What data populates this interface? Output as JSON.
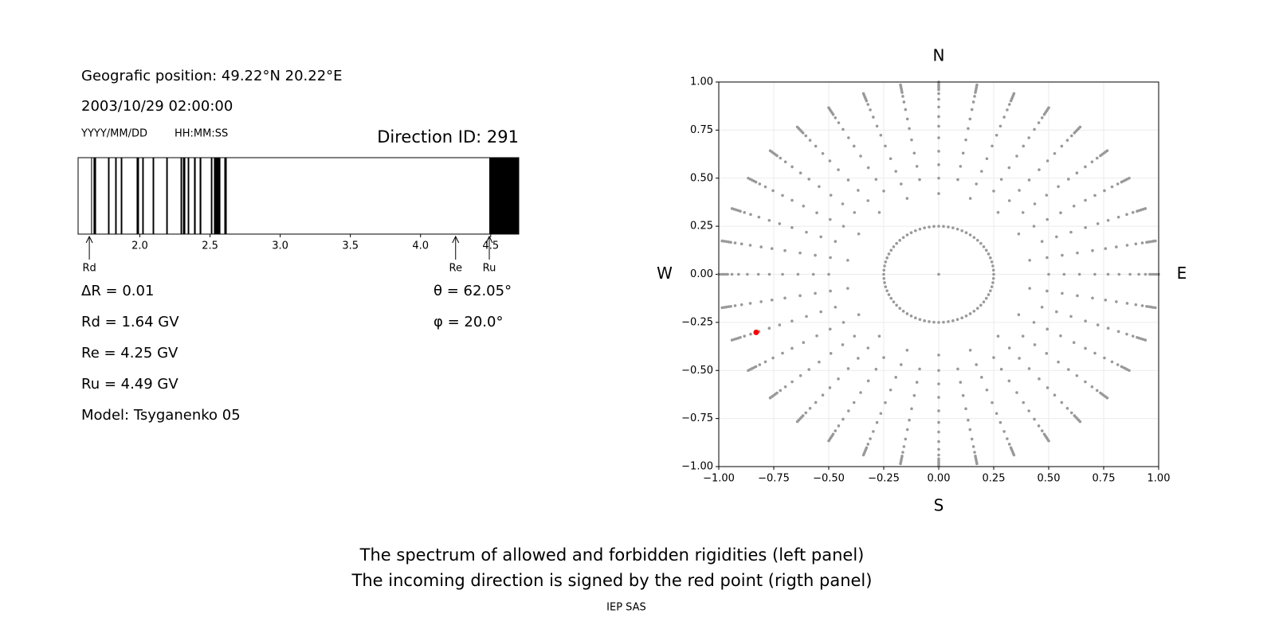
{
  "header": {
    "position": "Geografic position: 49.22°N 20.22°E",
    "datetime": "2003/10/29 02:00:00",
    "date_format": "YYYY/MM/DD",
    "time_format": "HH:MM:SS",
    "direction": "Direction ID: 291"
  },
  "info_left": [
    "ΔR = 0.01",
    "Rd = 1.64 GV",
    "Re = 4.25 GV",
    "Ru = 4.49 GV",
    "Model: Tsyganenko 05"
  ],
  "info_right": [
    "θ = 62.05°",
    "φ = 20.0°"
  ],
  "chart_data": [
    {
      "type": "spectrum",
      "xlim": [
        1.56,
        4.7
      ],
      "xticks": [
        {
          "value": 2,
          "label": "2.0"
        },
        {
          "value": 2.5,
          "label": "2.5"
        },
        {
          "value": 3,
          "label": "3.0"
        },
        {
          "value": 3.5,
          "label": "3.5"
        },
        {
          "value": 4,
          "label": "4.0"
        },
        {
          "value": 4.5,
          "label": "4.5"
        }
      ],
      "color": "#000000",
      "bands": [
        [
          1.653,
          1.659
        ],
        [
          1.67,
          1.688
        ],
        [
          1.773,
          1.784
        ],
        [
          1.824,
          1.835
        ],
        [
          1.864,
          1.875
        ],
        [
          1.977,
          1.994
        ],
        [
          2.017,
          2.028
        ],
        [
          2.091,
          2.102
        ],
        [
          2.188,
          2.199
        ],
        [
          2.29,
          2.301
        ],
        [
          2.307,
          2.324
        ],
        [
          2.341,
          2.352
        ],
        [
          2.386,
          2.398
        ],
        [
          2.426,
          2.438
        ],
        [
          2.506,
          2.517
        ],
        [
          2.528,
          2.574
        ],
        [
          2.602,
          2.619
        ],
        [
          4.49,
          4.7
        ]
      ],
      "markers": [
        {
          "label": "Rd",
          "value": 1.64
        },
        {
          "label": "Re",
          "value": 4.25
        },
        {
          "label": "Ru",
          "value": 4.49
        }
      ]
    },
    {
      "type": "scatter",
      "xlim": [
        -1,
        1
      ],
      "ylim": [
        -1,
        1
      ],
      "grid": true,
      "color": "#999999",
      "xticks": [
        {
          "value": -1,
          "label": "−1.00"
        },
        {
          "value": -0.75,
          "label": "−0.75"
        },
        {
          "value": -0.5,
          "label": "−0.50"
        },
        {
          "value": -0.25,
          "label": "−0.25"
        },
        {
          "value": 0,
          "label": "0.00"
        },
        {
          "value": 0.25,
          "label": "0.25"
        },
        {
          "value": 0.5,
          "label": "0.50"
        },
        {
          "value": 0.75,
          "label": "0.75"
        },
        {
          "value": 1,
          "label": "1.00"
        }
      ],
      "yticks": [
        {
          "value": -1,
          "label": "−1.00"
        },
        {
          "value": -0.75,
          "label": "−0.75"
        },
        {
          "value": -0.5,
          "label": "−0.50"
        },
        {
          "value": -0.25,
          "label": "−0.25"
        },
        {
          "value": 0,
          "label": "0.00"
        },
        {
          "value": 0.25,
          "label": "0.25"
        },
        {
          "value": 0.5,
          "label": "0.50"
        },
        {
          "value": 0.75,
          "label": "0.75"
        },
        {
          "value": 1,
          "label": "1.00"
        }
      ],
      "rings": [
        {
          "r": 0,
          "count": 1
        },
        {
          "r": 0.25,
          "count": 72
        },
        {
          "r": 0.42,
          "count": 18
        },
        {
          "r": 0.5,
          "count": 36
        },
        {
          "r": 0.57,
          "count": 36
        },
        {
          "r": 0.64,
          "count": 36
        },
        {
          "r": 0.71,
          "count": 36
        },
        {
          "r": 0.77,
          "count": 36
        },
        {
          "r": 0.82,
          "count": 36
        },
        {
          "r": 0.87,
          "count": 36
        },
        {
          "r": 0.91,
          "count": 36
        },
        {
          "r": 0.94,
          "count": 36
        },
        {
          "r": 0.96,
          "count": 36
        },
        {
          "r": 0.97,
          "count": 36
        },
        {
          "r": 0.98,
          "count": 36
        },
        {
          "r": 0.99,
          "count": 36
        },
        {
          "r": 1,
          "count": 36
        }
      ],
      "point": {
        "x": -0.83,
        "y": -0.302,
        "color": "#ff0000"
      },
      "compass": {
        "north": "N",
        "south": "S",
        "west": "W",
        "east": "E"
      }
    }
  ],
  "captions": [
    "The spectrum of allowed and forbidden rigidities (left panel)",
    "The incoming direction is signed by the red point (rigth panel)"
  ],
  "footer": "IEP SAS"
}
